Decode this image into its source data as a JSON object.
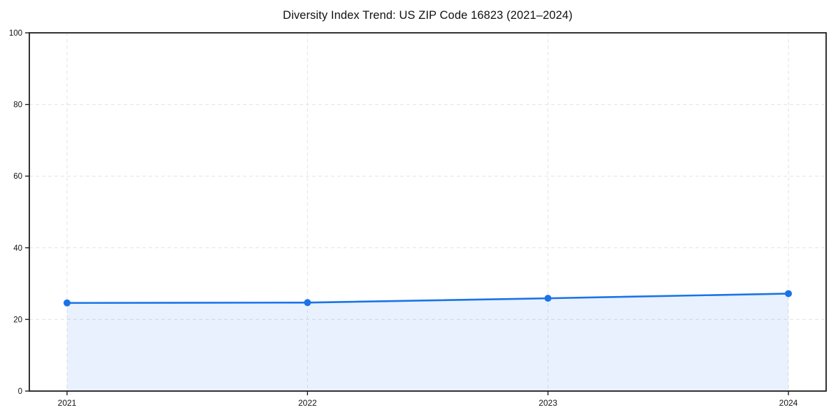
{
  "page": {
    "background_color": "#ffffff"
  },
  "chart_data": {
    "type": "area",
    "title": "Diversity Index Trend: US ZIP Code 16823 (2021–2024)",
    "x": [
      2021,
      2022,
      2023,
      2024
    ],
    "xticks": [
      "2021",
      "2022",
      "2023",
      "2024"
    ],
    "series": [
      {
        "name": "Diversity Index",
        "values": [
          24.6,
          24.7,
          25.9,
          27.2
        ]
      }
    ],
    "xlabel": "",
    "ylabel": "",
    "ylim": [
      0,
      100
    ],
    "yticks": [
      0,
      20,
      40,
      60,
      80,
      100
    ],
    "grid": "dashed-both-axes",
    "legend": "none",
    "marker": "filled-circle",
    "colors": {
      "line": "#1a73e8",
      "marker": "#1a73e8",
      "fill": "rgba(26,115,232,0.10)",
      "grid": "#e3e3e3",
      "spine": "#1c1c1c",
      "text": "#111111"
    }
  }
}
